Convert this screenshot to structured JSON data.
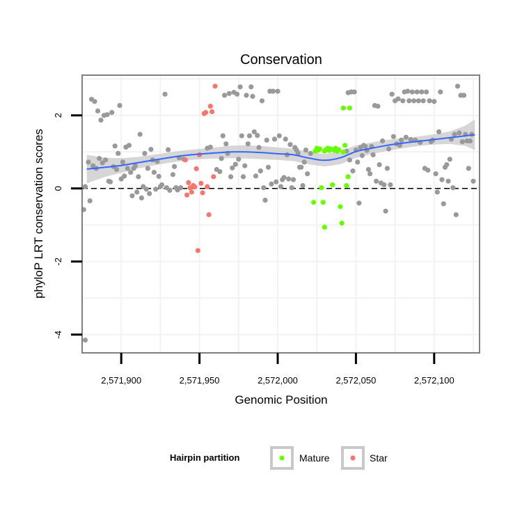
{
  "chart_data": {
    "type": "scatter",
    "title": "Conservation",
    "xlabel": "Genomic Position",
    "ylabel": "phyloP LRT conservation scores",
    "xlim": [
      2571875,
      2572129
    ],
    "ylim": [
      -4.5,
      3.1
    ],
    "x_ticks": [
      2571900,
      2571950,
      2572000,
      2572050,
      2572100
    ],
    "x_tick_labels": [
      "2,571,900",
      "2,571,950",
      "2,572,000",
      "2,572,050",
      "2,572,100"
    ],
    "y_ticks": [
      -4,
      -2,
      0,
      2
    ],
    "y_tick_labels": [
      "-4",
      "-2",
      "0",
      "2"
    ],
    "reference_line": {
      "y": 0,
      "style": "dashed",
      "color": "#000000"
    },
    "grid": true,
    "colors": {
      "background": "#ffffff",
      "grid": "#f2f2f2",
      "other": "#999999",
      "Mature": "#66ff00",
      "Star": "#f8766d",
      "trend": "#3366ff",
      "ribbon": "#c8c8c8"
    },
    "legend": {
      "title": "Hairpin partition",
      "placement": "bottom",
      "entries": [
        {
          "label": "Mature",
          "series": "Mature"
        },
        {
          "label": "Star",
          "series": "Star"
        }
      ]
    },
    "trend": {
      "method": "loess",
      "x": [
        2571878,
        2571890,
        2571900,
        2571910,
        2571920,
        2571930,
        2571940,
        2571950,
        2571960,
        2571970,
        2571980,
        2571990,
        2572000,
        2572010,
        2572020,
        2572030,
        2572040,
        2572050,
        2572060,
        2572070,
        2572080,
        2572090,
        2572100,
        2572110,
        2572120,
        2572126
      ],
      "y": [
        0.53,
        0.58,
        0.63,
        0.7,
        0.77,
        0.84,
        0.9,
        0.94,
        0.97,
        1.0,
        1.0,
        0.98,
        0.95,
        0.92,
        0.83,
        0.77,
        0.84,
        1.01,
        1.1,
        1.18,
        1.24,
        1.29,
        1.34,
        1.39,
        1.44,
        1.47
      ],
      "lower": [
        0.14,
        0.32,
        0.43,
        0.54,
        0.62,
        0.7,
        0.76,
        0.8,
        0.82,
        0.83,
        0.82,
        0.8,
        0.78,
        0.75,
        0.66,
        0.6,
        0.66,
        0.84,
        0.94,
        1.03,
        1.1,
        1.16,
        1.2,
        1.22,
        1.16,
        1.05
      ],
      "upper": [
        0.92,
        0.84,
        0.83,
        0.86,
        0.92,
        0.98,
        1.04,
        1.08,
        1.12,
        1.17,
        1.18,
        1.16,
        1.12,
        1.09,
        1.0,
        0.94,
        1.02,
        1.18,
        1.26,
        1.33,
        1.38,
        1.42,
        1.48,
        1.56,
        1.72,
        1.89
      ]
    },
    "series": [
      {
        "name": "Other",
        "points": [
          [
            2571876,
            -0.58
          ],
          [
            2571877,
            0.05
          ],
          [
            2571879,
            0.72
          ],
          [
            2571880,
            -0.34
          ],
          [
            2571881,
            2.44
          ],
          [
            2571882,
            0.62
          ],
          [
            2571883,
            2.38
          ],
          [
            2571884,
            0.55
          ],
          [
            2571885,
            2.12
          ],
          [
            2571886,
            0.82
          ],
          [
            2571887,
            1.87
          ],
          [
            2571888,
            0.7
          ],
          [
            2571889,
            2.0
          ],
          [
            2571890,
            0.78
          ],
          [
            2571891,
            2.02
          ],
          [
            2571892,
            0.2
          ],
          [
            2571893,
            0.18
          ],
          [
            2571894,
            2.08
          ],
          [
            2571895,
            0.6
          ],
          [
            2571896,
            1.16
          ],
          [
            2571897,
            0.52
          ],
          [
            2571898,
            0.96
          ],
          [
            2571899,
            2.27
          ],
          [
            2571900,
            0.26
          ],
          [
            2571901,
            0.72
          ],
          [
            2571902,
            0.34
          ],
          [
            2571903,
            1.13
          ],
          [
            2571904,
            0.55
          ],
          [
            2571905,
            1.18
          ],
          [
            2571906,
            0.44
          ],
          [
            2571907,
            -0.2
          ],
          [
            2571908,
            0.55
          ],
          [
            2571909,
            0.62
          ],
          [
            2571910,
            -0.1
          ],
          [
            2571911,
            0.32
          ],
          [
            2571912,
            1.48
          ],
          [
            2571913,
            -0.26
          ],
          [
            2571914,
            0.05
          ],
          [
            2571915,
            0.96
          ],
          [
            2571916,
            -0.02
          ],
          [
            2571917,
            0.55
          ],
          [
            2571918,
            -0.14
          ],
          [
            2571919,
            1.07
          ],
          [
            2571920,
            0.78
          ],
          [
            2571921,
            0.44
          ],
          [
            2571922,
            -0.02
          ],
          [
            2571923,
            0.74
          ],
          [
            2571924,
            0.33
          ],
          [
            2571925,
            0.05
          ],
          [
            2571926,
            0.1
          ],
          [
            2571928,
            2.58
          ],
          [
            2571929,
            0.02
          ],
          [
            2571930,
            1.06
          ],
          [
            2571931,
            -0.05
          ],
          [
            2571933,
            0.38
          ],
          [
            2571934,
            0.6
          ],
          [
            2571935,
            0.02
          ],
          [
            2571936,
            -0.04
          ],
          [
            2571937,
            0.84
          ],
          [
            2571938,
            0.02
          ],
          [
            2571940,
            0.8
          ],
          [
            2571955,
            1.1
          ],
          [
            2571957,
            1.13
          ],
          [
            2571961,
            0.52
          ],
          [
            2571963,
            0.46
          ],
          [
            2571964,
            0.82
          ],
          [
            2571965,
            1.44
          ],
          [
            2571966,
            2.55
          ],
          [
            2571967,
            1.22
          ],
          [
            2571968,
            0.96
          ],
          [
            2571969,
            2.6
          ],
          [
            2571970,
            0.32
          ],
          [
            2571971,
            0.56
          ],
          [
            2571972,
            2.63
          ],
          [
            2571973,
            0.66
          ],
          [
            2571974,
            2.58
          ],
          [
            2571975,
            0.8
          ],
          [
            2571976,
            2.78
          ],
          [
            2571977,
            1.44
          ],
          [
            2571978,
            0.32
          ],
          [
            2571979,
            0.62
          ],
          [
            2571980,
            2.55
          ],
          [
            2571981,
            1.22
          ],
          [
            2571982,
            1.44
          ],
          [
            2571983,
            2.78
          ],
          [
            2571984,
            2.52
          ],
          [
            2571985,
            1.55
          ],
          [
            2571986,
            0.34
          ],
          [
            2571987,
            1.45
          ],
          [
            2571988,
            1.12
          ],
          [
            2571989,
            0.48
          ],
          [
            2571990,
            2.4
          ],
          [
            2571991,
            0.02
          ],
          [
            2571992,
            -0.32
          ],
          [
            2571993,
            1.32
          ],
          [
            2571994,
            0.58
          ],
          [
            2571995,
            2.66
          ],
          [
            2571996,
            0.12
          ],
          [
            2571997,
            2.66
          ],
          [
            2571998,
            1.35
          ],
          [
            2571999,
            0.18
          ],
          [
            2572000,
            2.66
          ],
          [
            2572001,
            1.44
          ],
          [
            2572002,
            0.05
          ],
          [
            2572003,
            0.24
          ],
          [
            2572004,
            0.3
          ],
          [
            2572005,
            1.35
          ],
          [
            2572006,
            0.92
          ],
          [
            2572007,
            0.26
          ],
          [
            2572008,
            1.2
          ],
          [
            2572009,
            0.02
          ],
          [
            2572010,
            0.24
          ],
          [
            2572011,
            1.12
          ],
          [
            2572012,
            1.05
          ],
          [
            2572013,
            0.96
          ],
          [
            2572014,
            0.58
          ],
          [
            2572015,
            0.58
          ],
          [
            2572016,
            0.08
          ],
          [
            2572017,
            0.72
          ],
          [
            2572018,
            1.05
          ],
          [
            2572019,
            0.4
          ],
          [
            2572021,
            0.96
          ],
          [
            2572044,
            1.02
          ],
          [
            2572045,
            2.62
          ],
          [
            2572046,
            0.78
          ],
          [
            2572047,
            2.64
          ],
          [
            2572048,
            0.48
          ],
          [
            2572049,
            2.64
          ],
          [
            2572050,
            1.05
          ],
          [
            2572051,
            0.72
          ],
          [
            2572052,
            -0.4
          ],
          [
            2572053,
            1.12
          ],
          [
            2572054,
            0.9
          ],
          [
            2572055,
            1.18
          ],
          [
            2572056,
            1.15
          ],
          [
            2572057,
            1.04
          ],
          [
            2572058,
            0.52
          ],
          [
            2572059,
            0.4
          ],
          [
            2572060,
            1.15
          ],
          [
            2572061,
            0.92
          ],
          [
            2572062,
            2.27
          ],
          [
            2572063,
            0.2
          ],
          [
            2572064,
            2.25
          ],
          [
            2572065,
            0.65
          ],
          [
            2572066,
            0.15
          ],
          [
            2572067,
            1.3
          ],
          [
            2572068,
            0.1
          ],
          [
            2572069,
            -0.62
          ],
          [
            2572070,
            0.55
          ],
          [
            2572071,
            1.08
          ],
          [
            2572072,
            0.1
          ],
          [
            2572073,
            2.58
          ],
          [
            2572074,
            1.42
          ],
          [
            2572075,
            2.4
          ],
          [
            2572076,
            1.22
          ],
          [
            2572077,
            2.45
          ],
          [
            2572078,
            1.18
          ],
          [
            2572079,
            1.32
          ],
          [
            2572080,
            2.4
          ],
          [
            2572081,
            2.64
          ],
          [
            2572082,
            1.4
          ],
          [
            2572083,
            2.66
          ],
          [
            2572084,
            2.4
          ],
          [
            2572085,
            1.34
          ],
          [
            2572086,
            2.64
          ],
          [
            2572087,
            2.4
          ],
          [
            2572088,
            1.32
          ],
          [
            2572089,
            2.64
          ],
          [
            2572090,
            2.4
          ],
          [
            2572091,
            1.26
          ],
          [
            2572092,
            2.64
          ],
          [
            2572093,
            2.4
          ],
          [
            2572094,
            0.55
          ],
          [
            2572095,
            2.64
          ],
          [
            2572096,
            0.5
          ],
          [
            2572097,
            2.4
          ],
          [
            2572098,
            1.28
          ],
          [
            2572099,
            1.32
          ],
          [
            2572100,
            2.38
          ],
          [
            2572101,
            0.4
          ],
          [
            2572102,
            -0.1
          ],
          [
            2572103,
            1.55
          ],
          [
            2572104,
            2.64
          ],
          [
            2572105,
            0.24
          ],
          [
            2572106,
            -0.42
          ],
          [
            2572107,
            0.58
          ],
          [
            2572108,
            0.65
          ],
          [
            2572109,
            0.2
          ],
          [
            2572110,
            0.8
          ],
          [
            2572111,
            1.35
          ],
          [
            2572112,
            0.02
          ],
          [
            2572113,
            1.48
          ],
          [
            2572114,
            -0.72
          ],
          [
            2572115,
            2.8
          ],
          [
            2572116,
            1.52
          ],
          [
            2572117,
            2.55
          ],
          [
            2572118,
            1.28
          ],
          [
            2572119,
            2.55
          ],
          [
            2572120,
            1.48
          ],
          [
            2572121,
            1.3
          ],
          [
            2572122,
            0.55
          ],
          [
            2572123,
            1.3
          ],
          [
            2572124,
            1.48
          ],
          [
            2572125,
            0.2
          ],
          [
            2571877,
            -4.15
          ]
        ]
      },
      {
        "name": "Mature",
        "points": [
          [
            2572023,
            -0.38
          ],
          [
            2572024,
            1.02
          ],
          [
            2572025,
            1.1
          ],
          [
            2572026,
            1.05
          ],
          [
            2572027,
            1.08
          ],
          [
            2572028,
            0.02
          ],
          [
            2572029,
            -0.38
          ],
          [
            2572030,
            1.02
          ],
          [
            2572030,
            -1.06
          ],
          [
            2572031,
            1.07
          ],
          [
            2572032,
            1.1
          ],
          [
            2572033,
            1.04
          ],
          [
            2572034,
            1.08
          ],
          [
            2572035,
            0.1
          ],
          [
            2572036,
            1.05
          ],
          [
            2572037,
            1.1
          ],
          [
            2572038,
            1.02
          ],
          [
            2572039,
            1.06
          ],
          [
            2572040,
            -0.5
          ],
          [
            2572041,
            -0.95
          ],
          [
            2572042,
            1.0
          ],
          [
            2572042,
            2.2
          ],
          [
            2572043,
            1.18
          ],
          [
            2572044,
            0.08
          ],
          [
            2572045,
            0.32
          ],
          [
            2572046,
            2.2
          ]
        ]
      },
      {
        "name": "Star",
        "points": [
          [
            2571941,
            0.78
          ],
          [
            2571942,
            -0.18
          ],
          [
            2571943,
            0.16
          ],
          [
            2571944,
            0.02
          ],
          [
            2571945,
            -0.1
          ],
          [
            2571946,
            0.08
          ],
          [
            2571947,
            0.04
          ],
          [
            2571948,
            0.54
          ],
          [
            2571949,
            -1.7
          ],
          [
            2571950,
            0.92
          ],
          [
            2571951,
            0.14
          ],
          [
            2571952,
            -0.12
          ],
          [
            2571953,
            2.05
          ],
          [
            2571954,
            2.08
          ],
          [
            2571955,
            0.05
          ],
          [
            2571956,
            -0.72
          ],
          [
            2571957,
            2.25
          ],
          [
            2571958,
            2.1
          ],
          [
            2571959,
            0.32
          ],
          [
            2571960,
            2.8
          ]
        ]
      }
    ]
  }
}
